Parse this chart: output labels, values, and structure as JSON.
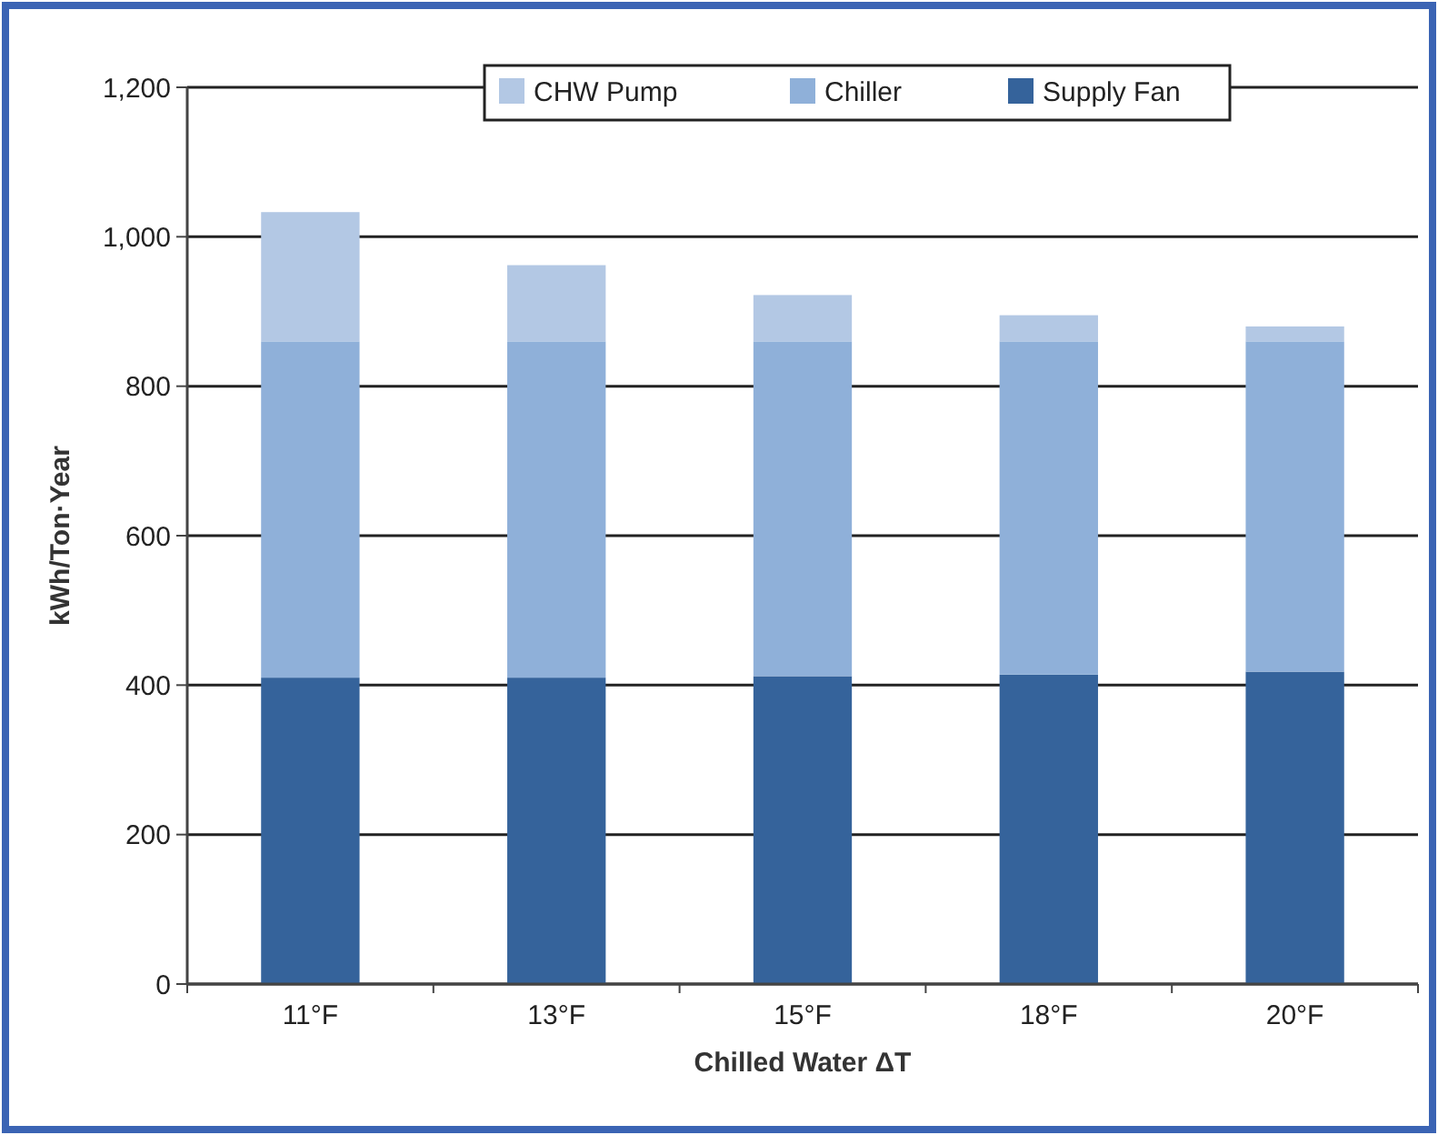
{
  "chart_data": {
    "type": "bar",
    "xlabel": "Chilled Water ΔT",
    "ylabel": "kWh/Ton·Year",
    "categories": [
      "11°F",
      "13°F",
      "15°F",
      "18°F",
      "20°F"
    ],
    "stacked": true,
    "series": [
      {
        "name": "Supply Fan",
        "color": "#35639b",
        "values": [
          410,
          410,
          412,
          414,
          418
        ]
      },
      {
        "name": "Chiller",
        "color": "#8fb0d9",
        "values": [
          450,
          450,
          448,
          446,
          442
        ]
      },
      {
        "name": "CHW Pump",
        "color": "#b3c8e4",
        "values": [
          173,
          102,
          62,
          35,
          20
        ]
      }
    ],
    "ylim": [
      0,
      1200
    ],
    "yticks": [
      {
        "value": 0,
        "label": "0"
      },
      {
        "value": 200,
        "label": "200"
      },
      {
        "value": 400,
        "label": "400"
      },
      {
        "value": 600,
        "label": "600"
      },
      {
        "value": 800,
        "label": "800"
      },
      {
        "value": 1000,
        "label": "1,000"
      },
      {
        "value": 1200,
        "label": "1,200"
      }
    ],
    "grid": "y",
    "legend": "top"
  }
}
